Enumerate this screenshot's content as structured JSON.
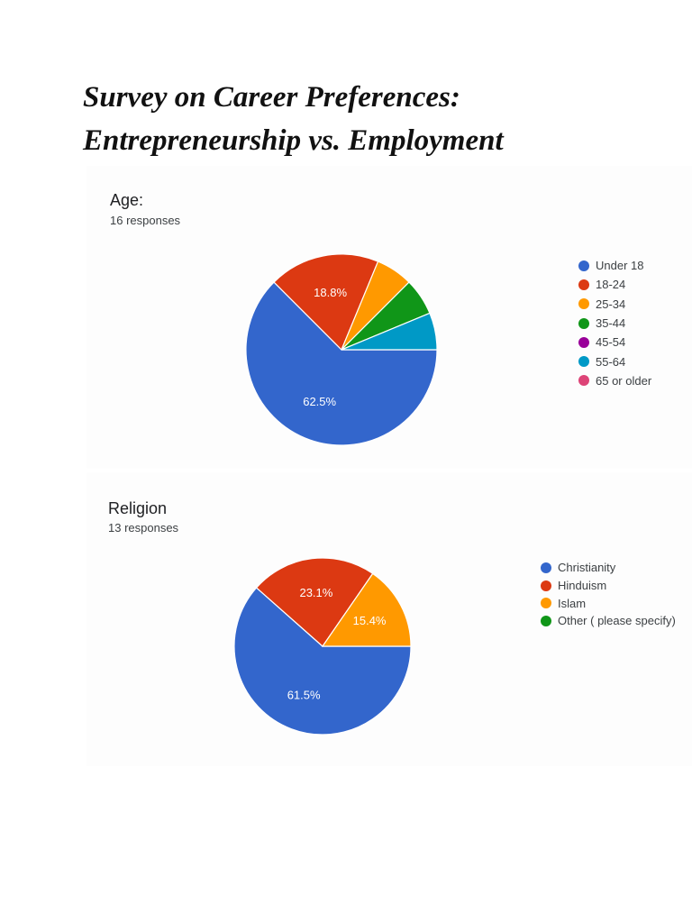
{
  "document": {
    "title": "Survey on Career Preferences: Entrepreneurship vs. Employment"
  },
  "chart_data": [
    {
      "type": "pie",
      "title": "Age:",
      "subtitle": "16 responses",
      "categories": [
        "Under 18",
        "18-24",
        "25-34",
        "35-44",
        "45-54",
        "55-64",
        "65 or older"
      ],
      "values": [
        10,
        3,
        1,
        1,
        0,
        1,
        0
      ],
      "percent_labels": [
        "62.5%",
        "18.8%",
        "",
        "",
        "",
        "",
        ""
      ],
      "colors": [
        "#3366cc",
        "#dc3912",
        "#ff9900",
        "#109618",
        "#990099",
        "#0099c6",
        "#dd4477"
      ],
      "legend": "right"
    },
    {
      "type": "pie",
      "title": "Religion",
      "subtitle": "13 responses",
      "categories": [
        "Christianity",
        "Hinduism",
        "Islam",
        "Other ( please specify)"
      ],
      "values": [
        8,
        3,
        2,
        0
      ],
      "percent_labels": [
        "61.5%",
        "23.1%",
        "15.4%",
        ""
      ],
      "colors": [
        "#3366cc",
        "#dc3912",
        "#ff9900",
        "#109618"
      ],
      "legend": "right"
    }
  ]
}
